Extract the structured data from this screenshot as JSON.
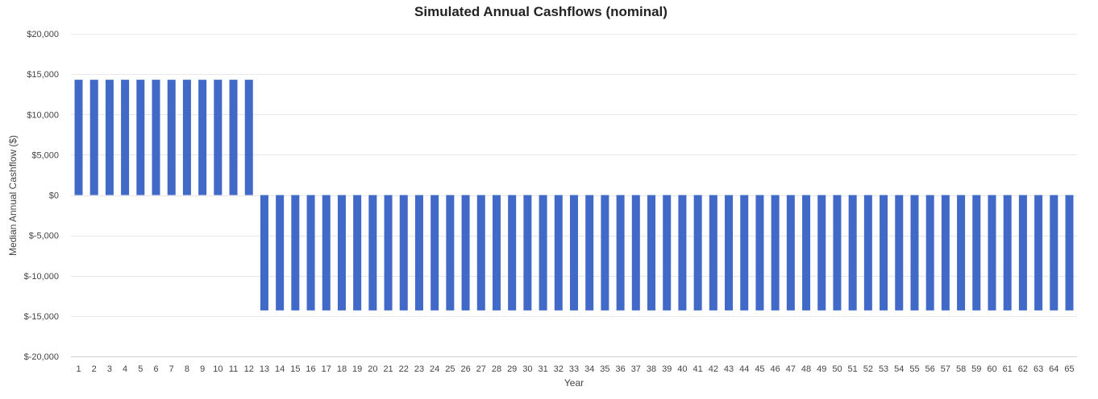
{
  "chart_data": {
    "type": "bar",
    "title": "Simulated Annual Cashflows (nominal)",
    "xlabel": "Year",
    "ylabel": "Median Annual Cashflow ($)",
    "ylim": [
      -20000,
      20000
    ],
    "yticks": [
      {
        "value": 20000,
        "label": "$20,000"
      },
      {
        "value": 15000,
        "label": "$15,000"
      },
      {
        "value": 10000,
        "label": "$10,000"
      },
      {
        "value": 5000,
        "label": "$5,000"
      },
      {
        "value": 0,
        "label": "$0"
      },
      {
        "value": -5000,
        "label": "$-5,000"
      },
      {
        "value": -10000,
        "label": "$-10,000"
      },
      {
        "value": -15000,
        "label": "$-15,000"
      },
      {
        "value": -20000,
        "label": "$-20,000"
      }
    ],
    "categories": [
      "1",
      "2",
      "3",
      "4",
      "5",
      "6",
      "7",
      "8",
      "9",
      "10",
      "11",
      "12",
      "13",
      "14",
      "15",
      "16",
      "17",
      "18",
      "19",
      "20",
      "21",
      "22",
      "23",
      "24",
      "25",
      "26",
      "27",
      "28",
      "29",
      "30",
      "31",
      "32",
      "33",
      "34",
      "35",
      "36",
      "37",
      "38",
      "39",
      "40",
      "41",
      "42",
      "43",
      "44",
      "45",
      "46",
      "47",
      "48",
      "49",
      "50",
      "51",
      "52",
      "53",
      "54",
      "55",
      "56",
      "57",
      "58",
      "59",
      "60",
      "61",
      "62",
      "63",
      "64",
      "65"
    ],
    "values": [
      14300,
      14300,
      14300,
      14300,
      14300,
      14300,
      14300,
      14300,
      14300,
      14300,
      14300,
      14300,
      -14300,
      -14300,
      -14300,
      -14300,
      -14300,
      -14300,
      -14300,
      -14300,
      -14300,
      -14300,
      -14300,
      -14300,
      -14300,
      -14300,
      -14300,
      -14300,
      -14300,
      -14300,
      -14300,
      -14300,
      -14300,
      -14300,
      -14300,
      -14300,
      -14300,
      -14300,
      -14300,
      -14300,
      -14300,
      -14300,
      -14300,
      -14300,
      -14300,
      -14300,
      -14300,
      -14300,
      -14300,
      -14300,
      -14300,
      -14300,
      -14300,
      -14300,
      -14300,
      -14300,
      -14300,
      -14300,
      -14300,
      -14300,
      -14300,
      -14300,
      -14300,
      -14300,
      -14300
    ],
    "grid": true,
    "bar_color": "#4169C8",
    "gridline_color": "#e6e6e6",
    "axis_color": "#cccccc"
  }
}
